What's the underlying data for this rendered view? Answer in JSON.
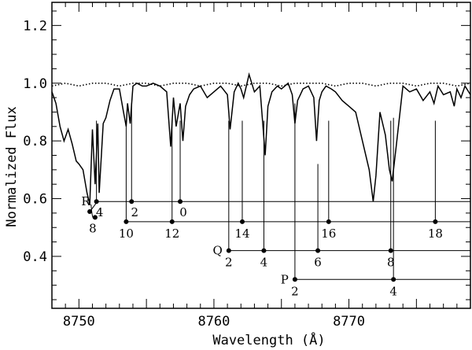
{
  "chart_data": {
    "type": "line",
    "title": "",
    "xlabel": "Wavelength (Å)",
    "ylabel": "Normalized Flux",
    "xlim": [
      8748,
      8779
    ],
    "ylim": [
      0.22,
      1.28
    ],
    "xticks": [
      8750,
      8760,
      8770
    ],
    "yticks": [
      0.4,
      0.6,
      0.8,
      1.0,
      1.2
    ],
    "ytick_labels": [
      "0.4",
      "0.6",
      "0.8",
      "1.0",
      "1.2"
    ],
    "series": [
      {
        "style": "solid",
        "x": [
          8748.0,
          8748.3,
          8748.6,
          8748.9,
          8749.2,
          8749.5,
          8749.8,
          8750.0,
          8750.3,
          8750.6,
          8750.8,
          8751.0,
          8751.2,
          8751.4,
          8751.5,
          8751.6,
          8751.8,
          8752.0,
          8752.3,
          8752.6,
          8753.0,
          8753.3,
          8753.5,
          8753.6,
          8753.8,
          8754.0,
          8754.3,
          8754.7,
          8755.0,
          8755.5,
          8756.0,
          8756.5,
          8756.8,
          8757.0,
          8757.2,
          8757.5,
          8757.7,
          8757.9,
          8758.2,
          8758.5,
          8759.0,
          8759.5,
          8760.0,
          8760.5,
          8761.0,
          8761.2,
          8761.5,
          8761.8,
          8762.0,
          8762.2,
          8762.6,
          8763.0,
          8763.4,
          8763.8,
          8764.0,
          8764.3,
          8764.7,
          8765.0,
          8765.5,
          8765.8,
          8766.0,
          8766.2,
          8766.6,
          8767.0,
          8767.4,
          8767.6,
          8767.8,
          8768.0,
          8768.3,
          8768.7,
          8769.0,
          8769.5,
          8770.0,
          8770.5,
          8771.0,
          8771.5,
          8771.8,
          8772.0,
          8772.3,
          8772.7,
          8773.0,
          8773.2,
          8773.5,
          8774.0,
          8774.5,
          8775.0,
          8775.5,
          8776.0,
          8776.3,
          8776.6,
          8777.0,
          8777.5,
          8777.8,
          8778.0,
          8778.3,
          8778.6,
          8779.0
        ],
        "y": [
          0.97,
          0.93,
          0.85,
          0.8,
          0.84,
          0.79,
          0.73,
          0.72,
          0.7,
          0.62,
          0.58,
          0.84,
          0.65,
          0.86,
          0.62,
          0.7,
          0.86,
          0.88,
          0.94,
          0.98,
          0.98,
          0.9,
          0.85,
          0.93,
          0.86,
          0.99,
          1.0,
          0.99,
          0.99,
          1.0,
          0.99,
          0.97,
          0.78,
          0.95,
          0.85,
          0.93,
          0.8,
          0.92,
          0.96,
          0.98,
          0.99,
          0.95,
          0.97,
          0.99,
          0.96,
          0.84,
          0.97,
          1.0,
          0.98,
          0.95,
          1.03,
          0.97,
          0.99,
          0.75,
          0.92,
          0.97,
          0.99,
          0.98,
          1.0,
          0.96,
          0.86,
          0.94,
          0.98,
          0.99,
          0.95,
          0.8,
          0.94,
          0.97,
          0.99,
          0.98,
          0.97,
          0.94,
          0.92,
          0.9,
          0.8,
          0.7,
          0.59,
          0.68,
          0.9,
          0.82,
          0.7,
          0.66,
          0.78,
          0.99,
          0.97,
          0.98,
          0.94,
          0.97,
          0.93,
          0.99,
          0.96,
          0.97,
          0.92,
          0.98,
          0.95,
          0.99,
          0.96
        ]
      },
      {
        "style": "dotted",
        "x": [
          8748,
          8749,
          8750,
          8751,
          8752,
          8753,
          8754,
          8755,
          8756,
          8757,
          8758,
          8759,
          8760,
          8761,
          8762,
          8763,
          8764,
          8765,
          8766,
          8767,
          8768,
          8769,
          8770,
          8771,
          8772,
          8773,
          8774,
          8775,
          8776,
          8777,
          8778,
          8779
        ],
        "y": [
          0.99,
          1.0,
          0.99,
          1.0,
          1.0,
          0.99,
          1.0,
          1.0,
          0.99,
          1.0,
          1.0,
          0.99,
          1.0,
          1.0,
          0.99,
          1.0,
          1.0,
          0.99,
          1.0,
          1.0,
          1.0,
          0.99,
          1.0,
          1.0,
          0.99,
          1.0,
          1.0,
          0.99,
          1.0,
          1.0,
          0.99,
          1.0
        ]
      }
    ],
    "branches": [
      {
        "name": "R",
        "baseline": 0.59,
        "lines": [
          {
            "x": 8751.3,
            "y": 0.59,
            "label": "4",
            "top": 0.87
          },
          {
            "x": 8753.9,
            "y": 0.59,
            "label": "2",
            "top": 0.93
          },
          {
            "x": 8757.5,
            "y": 0.59,
            "label": "0",
            "top": 0.87
          }
        ]
      },
      {
        "name": "",
        "baseline": 0.52,
        "lines": [
          {
            "x": 8753.5,
            "y": 0.52,
            "label": "10",
            "top": 0.87
          },
          {
            "x": 8756.9,
            "y": 0.52,
            "label": "12",
            "top": 0.87
          },
          {
            "x": 8762.1,
            "y": 0.52,
            "label": "14",
            "top": 0.87
          },
          {
            "x": 8768.5,
            "y": 0.52,
            "label": "16",
            "top": 0.87
          },
          {
            "x": 8776.4,
            "y": 0.52,
            "label": "18",
            "top": 0.87
          }
        ]
      },
      {
        "name": "Q",
        "baseline": 0.42,
        "lines": [
          {
            "x": 8761.1,
            "y": 0.42,
            "label": "2",
            "top": 0.87
          },
          {
            "x": 8763.7,
            "y": 0.42,
            "label": "4",
            "top": 0.87
          },
          {
            "x": 8767.7,
            "y": 0.42,
            "label": "6",
            "top": 0.72
          },
          {
            "x": 8773.1,
            "y": 0.42,
            "label": "8",
            "top": 0.87
          }
        ]
      },
      {
        "name": "P",
        "baseline": 0.32,
        "lines": [
          {
            "x": 8766.0,
            "y": 0.32,
            "label": "2",
            "top": 0.93
          },
          {
            "x": 8773.3,
            "y": 0.32,
            "label": "4",
            "top": 0.88
          }
        ]
      }
    ],
    "r_extra": [
      {
        "x": 8750.8,
        "y": 0.555,
        "label": "",
        "top": 0.555
      },
      {
        "x": 8751.2,
        "y": 0.535,
        "label": "8",
        "top": 0.535
      }
    ],
    "grid": false,
    "legend": "none"
  }
}
